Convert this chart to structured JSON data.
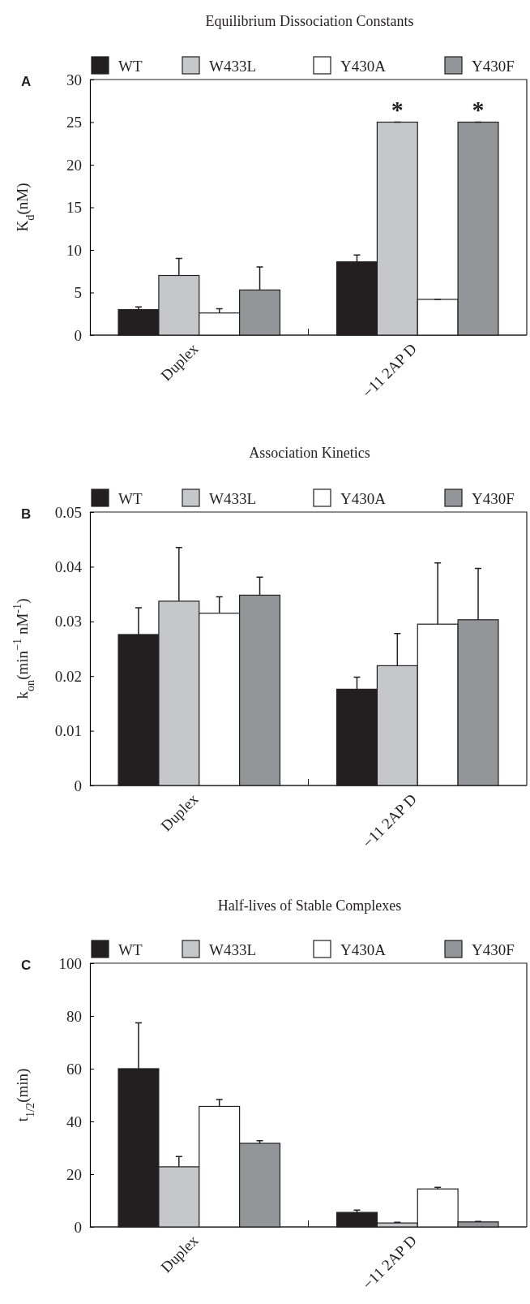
{
  "chart_data": [
    {
      "type": "bar",
      "title": "Equilibrium Dissociation Constants",
      "ylabel": "K$_{d}$(nM)",
      "categories": [
        "Duplex",
        "−11 2AP D"
      ],
      "ylim": [
        0,
        30
      ],
      "yticks": [
        0,
        5,
        10,
        15,
        20,
        25,
        30
      ],
      "legend": "top",
      "grid": false,
      "annotations": [
        "A",
        {
          "text": "*",
          "x": "−11 2AP D",
          "y": 25
        },
        {
          "text": "*",
          "x": "−11 2AP D",
          "y": 25
        }
      ],
      "series": [
        {
          "name": "WT",
          "color": "#231f20",
          "values": [
            3.0,
            8.6
          ],
          "errors": [
            0.3,
            0.8
          ]
        },
        {
          "name": "W433L",
          "color": "#c6c7c9",
          "values": [
            7.0,
            25
          ],
          "errors": [
            2.0,
            0
          ]
        },
        {
          "name": "Y430A",
          "color": "#ffffff",
          "values": [
            2.6,
            4.2
          ],
          "errors": [
            0.5,
            0
          ]
        },
        {
          "name": "Y430F",
          "color": "#939598",
          "values": [
            5.3,
            25
          ],
          "errors": [
            2.7,
            0
          ]
        }
      ]
    },
    {
      "type": "bar",
      "title": "Association Kinetics",
      "ylabel": "k$_{on}$(min$^{−1}$ nM$^{-1}$)",
      "categories": [
        "Duplex",
        "−11 2AP D"
      ],
      "ylim": [
        0,
        0.05
      ],
      "yticks": [
        0,
        0.01,
        0.02,
        0.03,
        0.04,
        0.05
      ],
      "legend": "top",
      "grid": false,
      "annotations": [
        "B"
      ],
      "series": [
        {
          "name": "WT",
          "color": "#231f20",
          "values": [
            0.0276,
            0.0176
          ],
          "errors": [
            0.0049,
            0.0022
          ]
        },
        {
          "name": "W433L",
          "color": "#c6c7c9",
          "values": [
            0.0337,
            0.0219
          ],
          "errors": [
            0.0098,
            0.0059
          ]
        },
        {
          "name": "Y430A",
          "color": "#ffffff",
          "values": [
            0.0315,
            0.0295
          ],
          "errors": [
            0.003,
            0.0112
          ]
        },
        {
          "name": "Y430F",
          "color": "#939598",
          "values": [
            0.0348,
            0.0303
          ],
          "errors": [
            0.0033,
            0.0094
          ]
        }
      ]
    },
    {
      "type": "bar",
      "title": "Half-lives of Stable Complexes",
      "ylabel": "t$_{1/2}$(min)",
      "categories": [
        "Duplex",
        "−11 2AP D"
      ],
      "ylim": [
        0,
        100
      ],
      "yticks": [
        0,
        20,
        40,
        60,
        80,
        100
      ],
      "legend": "top",
      "grid": false,
      "annotations": [
        "C"
      ],
      "series": [
        {
          "name": "WT",
          "color": "#231f20",
          "values": [
            60,
            5.5
          ],
          "errors": [
            17.4,
            0.9
          ]
        },
        {
          "name": "W433L",
          "color": "#c6c7c9",
          "values": [
            22.8,
            1.5
          ],
          "errors": [
            3.9,
            0.3
          ]
        },
        {
          "name": "Y430A",
          "color": "#ffffff",
          "values": [
            45.7,
            14.4
          ],
          "errors": [
            2.6,
            0.6
          ]
        },
        {
          "name": "Y430F",
          "color": "#939598",
          "values": [
            31.7,
            1.9
          ],
          "errors": [
            1.0,
            0.2
          ]
        }
      ]
    }
  ]
}
